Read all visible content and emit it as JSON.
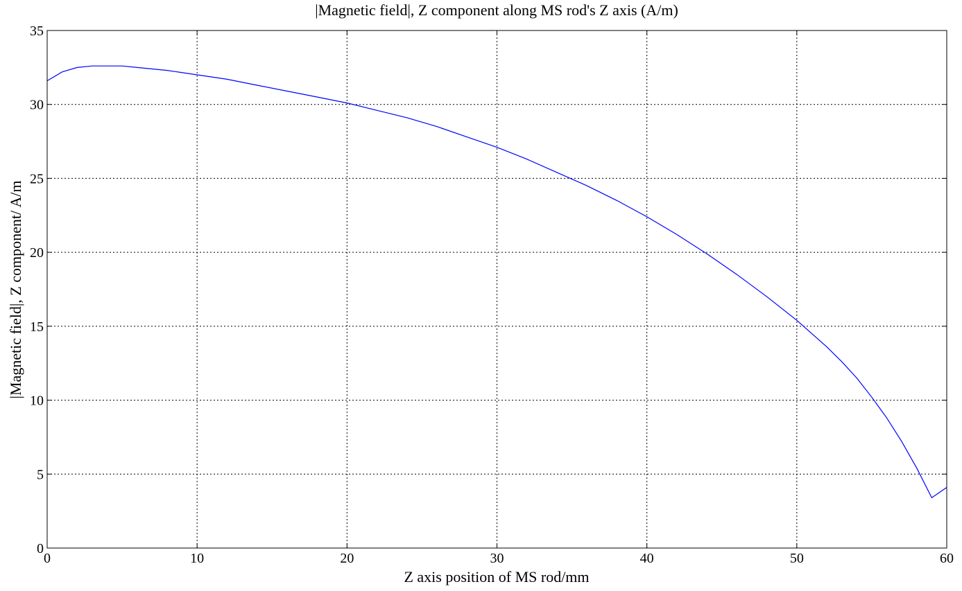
{
  "chart_data": {
    "type": "line",
    "title": "|Magnetic field|,  Z component along MS rod's Z axis (A/m)",
    "xlabel": "Z axis position of MS rod/mm",
    "ylabel": "|Magnetic field|,  Z component/ A/m",
    "xlim": [
      0,
      60
    ],
    "ylim": [
      0,
      35
    ],
    "xticks": [
      0,
      10,
      20,
      30,
      40,
      50,
      60
    ],
    "yticks": [
      0,
      5,
      10,
      15,
      20,
      25,
      30,
      35
    ],
    "grid": true,
    "series": [
      {
        "color": "#0000ff",
        "x": [
          0,
          1,
          2,
          3,
          4,
          5,
          6,
          8,
          10,
          12,
          14,
          16,
          18,
          20,
          22,
          24,
          26,
          28,
          30,
          32,
          34,
          36,
          38,
          40,
          42,
          44,
          46,
          48,
          50,
          52,
          53,
          54,
          55,
          56,
          57,
          58,
          59,
          60
        ],
        "y": [
          31.6,
          32.2,
          32.5,
          32.6,
          32.6,
          32.6,
          32.5,
          32.3,
          32.0,
          31.7,
          31.3,
          30.9,
          30.5,
          30.1,
          29.6,
          29.1,
          28.5,
          27.8,
          27.1,
          26.3,
          25.4,
          24.5,
          23.5,
          22.4,
          21.2,
          19.9,
          18.5,
          17.0,
          15.4,
          13.6,
          12.6,
          11.5,
          10.2,
          8.8,
          7.2,
          5.4,
          3.4,
          4.1
        ]
      }
    ]
  }
}
